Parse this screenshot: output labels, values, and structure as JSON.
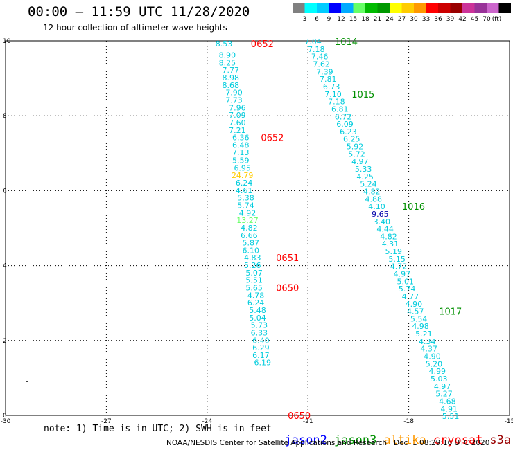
{
  "header": {
    "title": "00:00 — 11:59 UTC 11/28/2020",
    "subtitle": "12 hour collection of altimeter wave heights"
  },
  "footer": {
    "note": "note: 1) Time is in UTC; 2) SWH is in feet",
    "credit": "NOAA/NESDIS Center for Satellite Applications and Research   Dec  1 08:29:16 UTC 2020"
  },
  "satellites": [
    {
      "name": "jason2",
      "color": "#0000ff"
    },
    {
      "name": "jason3",
      "color": "#009000"
    },
    {
      "name": "altika",
      "color": "#ff9900"
    },
    {
      "name": "cryosat",
      "color": "#ff0000"
    },
    {
      "name": "s3a",
      "color": "#990000"
    }
  ],
  "colorscale": {
    "colors": [
      "#808080",
      "#00ffff",
      "#00ccff",
      "#0000ff",
      "#00aaff",
      "#66ff66",
      "#00bb00",
      "#009900",
      "#ffff00",
      "#ffcc00",
      "#ff9900",
      "#ff0000",
      "#cc0000",
      "#990000",
      "#cc3399",
      "#993399",
      "#cc66cc",
      "#000000"
    ],
    "labels": [
      "3",
      "6",
      "9",
      "12",
      "15",
      "18",
      "21",
      "24",
      "27",
      "30",
      "33",
      "36",
      "39",
      "42",
      "45",
      "70",
      "(ft)"
    ]
  },
  "colors": {
    "default_value": "#00ccdd",
    "grid": "#000000"
  },
  "chart_data": {
    "type": "scatter",
    "xlim": [
      -30,
      -15
    ],
    "ylim": [
      0,
      10
    ],
    "xticks": [
      -30,
      -27,
      -24,
      -21,
      -18,
      -15
    ],
    "xticklabels": [
      "-30",
      "-27",
      "-24",
      "-21",
      "-18",
      "-15"
    ],
    "yticks": [
      0,
      2,
      4,
      6,
      8,
      10
    ],
    "yticklabels": [
      "0",
      "2",
      "4",
      "6",
      "8",
      "10"
    ],
    "grid": true,
    "tracks": [
      {
        "name": "track-west",
        "points": [
          {
            "x": -23.5,
            "y": 9.93,
            "v": "8.53"
          },
          {
            "x": -23.4,
            "y": 9.62,
            "v": "8.90"
          },
          {
            "x": -23.4,
            "y": 9.42,
            "v": "8.25"
          },
          {
            "x": -23.3,
            "y": 9.22,
            "v": "7.77"
          },
          {
            "x": -23.3,
            "y": 9.02,
            "v": "8.98"
          },
          {
            "x": -23.3,
            "y": 8.82,
            "v": "8.68"
          },
          {
            "x": -23.2,
            "y": 8.62,
            "v": "7.90"
          },
          {
            "x": -23.2,
            "y": 8.42,
            "v": "7.73"
          },
          {
            "x": -23.1,
            "y": 8.22,
            "v": "7.96"
          },
          {
            "x": -23.1,
            "y": 8.02,
            "v": "7.09"
          },
          {
            "x": -23.1,
            "y": 7.82,
            "v": "7.60"
          },
          {
            "x": -23.1,
            "y": 7.62,
            "v": "7.21"
          },
          {
            "x": -23.0,
            "y": 7.42,
            "v": "6.36"
          },
          {
            "x": -23.0,
            "y": 7.22,
            "v": "6.48"
          },
          {
            "x": -23.0,
            "y": 7.02,
            "v": "7.13"
          },
          {
            "x": -23.0,
            "y": 6.81,
            "v": "5.59"
          },
          {
            "x": -22.95,
            "y": 6.61,
            "v": "6.95"
          },
          {
            "x": -22.95,
            "y": 6.41,
            "v": "24.79",
            "c": "#ffcc00"
          },
          {
            "x": -22.9,
            "y": 6.21,
            "v": "6.24"
          },
          {
            "x": -22.9,
            "y": 6.01,
            "v": "4.61"
          },
          {
            "x": -22.85,
            "y": 5.81,
            "v": "5.38"
          },
          {
            "x": -22.85,
            "y": 5.61,
            "v": "5.74"
          },
          {
            "x": -22.8,
            "y": 5.41,
            "v": "4.92"
          },
          {
            "x": -22.8,
            "y": 5.21,
            "v": "13.27",
            "c": "#66ff66"
          },
          {
            "x": -22.75,
            "y": 5.01,
            "v": "4.82"
          },
          {
            "x": -22.75,
            "y": 4.81,
            "v": "6.66"
          },
          {
            "x": -22.7,
            "y": 4.61,
            "v": "5.87"
          },
          {
            "x": -22.7,
            "y": 4.41,
            "v": "6.10"
          },
          {
            "x": -22.65,
            "y": 4.21,
            "v": "4.83"
          },
          {
            "x": -22.65,
            "y": 4.01,
            "v": "5.26"
          },
          {
            "x": -22.6,
            "y": 3.81,
            "v": "5.07"
          },
          {
            "x": -22.6,
            "y": 3.61,
            "v": "5.51"
          },
          {
            "x": -22.6,
            "y": 3.41,
            "v": "5.65"
          },
          {
            "x": -22.55,
            "y": 3.21,
            "v": "4.78"
          },
          {
            "x": -22.55,
            "y": 3.01,
            "v": "6.24"
          },
          {
            "x": -22.5,
            "y": 2.81,
            "v": "5.48"
          },
          {
            "x": -22.5,
            "y": 2.61,
            "v": "5.04"
          },
          {
            "x": -22.45,
            "y": 2.41,
            "v": "5.73"
          },
          {
            "x": -22.45,
            "y": 2.21,
            "v": "6.33"
          },
          {
            "x": -22.4,
            "y": 2.01,
            "v": "6.40"
          },
          {
            "x": -22.4,
            "y": 1.81,
            "v": "6.29"
          },
          {
            "x": -22.4,
            "y": 1.61,
            "v": "6.17"
          },
          {
            "x": -22.35,
            "y": 1.41,
            "v": "6.19"
          }
        ]
      },
      {
        "name": "track-east",
        "points": [
          {
            "x": -20.85,
            "y": 9.98,
            "v": "7.04"
          },
          {
            "x": -20.75,
            "y": 9.78,
            "v": "7.18"
          },
          {
            "x": -20.65,
            "y": 9.58,
            "v": "7.46"
          },
          {
            "x": -20.6,
            "y": 9.38,
            "v": "7.62"
          },
          {
            "x": -20.5,
            "y": 9.18,
            "v": "7.39"
          },
          {
            "x": -20.4,
            "y": 8.98,
            "v": "7.81"
          },
          {
            "x": -20.3,
            "y": 8.78,
            "v": "6.73"
          },
          {
            "x": -20.25,
            "y": 8.58,
            "v": "7.10"
          },
          {
            "x": -20.15,
            "y": 8.38,
            "v": "7.18"
          },
          {
            "x": -20.05,
            "y": 8.18,
            "v": "6.81"
          },
          {
            "x": -19.95,
            "y": 7.98,
            "v": "6.72"
          },
          {
            "x": -19.9,
            "y": 7.78,
            "v": "6.09"
          },
          {
            "x": -19.8,
            "y": 7.58,
            "v": "6.23"
          },
          {
            "x": -19.7,
            "y": 7.38,
            "v": "6.25"
          },
          {
            "x": -19.6,
            "y": 7.18,
            "v": "5.92"
          },
          {
            "x": -19.55,
            "y": 6.98,
            "v": "5.72"
          },
          {
            "x": -19.45,
            "y": 6.78,
            "v": "4.97"
          },
          {
            "x": -19.35,
            "y": 6.58,
            "v": "5.33"
          },
          {
            "x": -19.3,
            "y": 6.38,
            "v": "4.25"
          },
          {
            "x": -19.2,
            "y": 6.18,
            "v": "5.24"
          },
          {
            "x": -19.1,
            "y": 5.98,
            "v": "4.82"
          },
          {
            "x": -19.05,
            "y": 5.78,
            "v": "4.88"
          },
          {
            "x": -18.95,
            "y": 5.58,
            "v": "4.10"
          },
          {
            "x": -18.85,
            "y": 5.38,
            "v": "9.65",
            "c": "#0000aa"
          },
          {
            "x": -18.8,
            "y": 5.18,
            "v": "3.40"
          },
          {
            "x": -18.7,
            "y": 4.98,
            "v": "4.44"
          },
          {
            "x": -18.6,
            "y": 4.78,
            "v": "4.82"
          },
          {
            "x": -18.55,
            "y": 4.58,
            "v": "4.31"
          },
          {
            "x": -18.45,
            "y": 4.38,
            "v": "5.19"
          },
          {
            "x": -18.35,
            "y": 4.18,
            "v": "5.15"
          },
          {
            "x": -18.3,
            "y": 3.98,
            "v": "4.72"
          },
          {
            "x": -18.2,
            "y": 3.78,
            "v": "4.97"
          },
          {
            "x": -18.1,
            "y": 3.58,
            "v": "5.01"
          },
          {
            "x": -18.05,
            "y": 3.38,
            "v": "5.74"
          },
          {
            "x": -17.95,
            "y": 3.18,
            "v": "4.77"
          },
          {
            "x": -17.85,
            "y": 2.98,
            "v": "4.90"
          },
          {
            "x": -17.8,
            "y": 2.78,
            "v": "4.57"
          },
          {
            "x": -17.7,
            "y": 2.58,
            "v": "5.54"
          },
          {
            "x": -17.65,
            "y": 2.38,
            "v": "4.98"
          },
          {
            "x": -17.55,
            "y": 2.18,
            "v": "5.21"
          },
          {
            "x": -17.45,
            "y": 1.98,
            "v": "4.34"
          },
          {
            "x": -17.4,
            "y": 1.78,
            "v": "4.37"
          },
          {
            "x": -17.3,
            "y": 1.58,
            "v": "4.90"
          },
          {
            "x": -17.25,
            "y": 1.38,
            "v": "5.20"
          },
          {
            "x": -17.15,
            "y": 1.18,
            "v": "4.99"
          },
          {
            "x": -17.1,
            "y": 0.98,
            "v": "5.03"
          },
          {
            "x": -17.0,
            "y": 0.78,
            "v": "4.97"
          },
          {
            "x": -16.95,
            "y": 0.58,
            "v": "5.27"
          },
          {
            "x": -16.85,
            "y": 0.38,
            "v": "4.68"
          },
          {
            "x": -16.8,
            "y": 0.18,
            "v": "4.91"
          },
          {
            "x": -16.75,
            "y": -0.02,
            "v": "5.51"
          }
        ]
      }
    ],
    "time_labels": [
      {
        "x": -22.7,
        "y": 9.93,
        "v": "0652",
        "c": "#ff0000"
      },
      {
        "x": -22.4,
        "y": 7.42,
        "v": "0652",
        "c": "#ff0000"
      },
      {
        "x": -21.95,
        "y": 4.21,
        "v": "0651",
        "c": "#ff0000"
      },
      {
        "x": -21.95,
        "y": 3.41,
        "v": "0650",
        "c": "#ff0000"
      },
      {
        "x": -21.6,
        "y": 0.0,
        "v": "0650",
        "c": "#ff0000"
      },
      {
        "x": -20.2,
        "y": 9.98,
        "v": "1014",
        "c": "#009000"
      },
      {
        "x": -19.7,
        "y": 8.58,
        "v": "1015",
        "c": "#009000"
      },
      {
        "x": -18.2,
        "y": 5.58,
        "v": "1016",
        "c": "#009000"
      },
      {
        "x": -17.1,
        "y": 2.78,
        "v": "1017",
        "c": "#009000"
      }
    ]
  }
}
